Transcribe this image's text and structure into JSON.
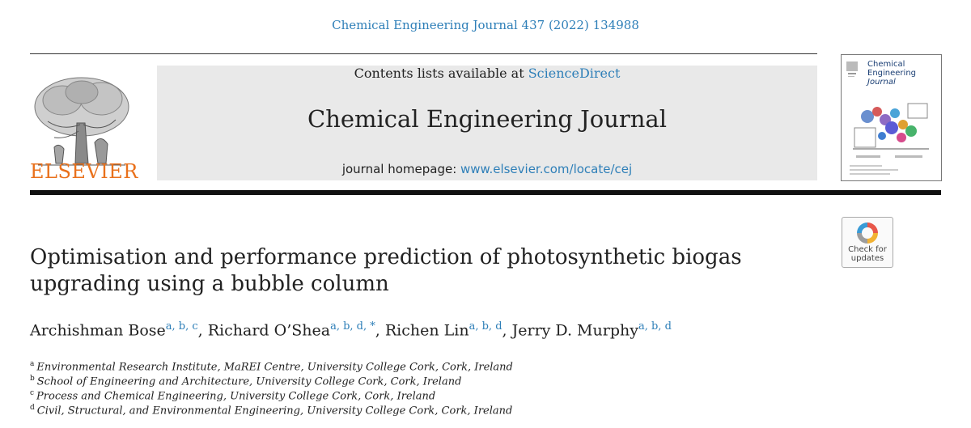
{
  "citation": "Chemical Engineering Journal 437 (2022) 134988",
  "publisher": {
    "name": "ELSEVIER"
  },
  "header": {
    "contents_prefix": "Contents lists available at ",
    "contents_link": "ScienceDirect",
    "journal_name": "Chemical Engineering Journal",
    "homepage_prefix": "journal homepage: ",
    "homepage_link": "www.elsevier.com/locate/cej"
  },
  "cover": {
    "title_line1": "Chemical",
    "title_line2": "Engineering",
    "title_line3": "Journal"
  },
  "check_updates": {
    "line1": "Check for",
    "line2": "updates"
  },
  "article": {
    "title_line1": "Optimisation and performance prediction of photosynthetic biogas",
    "title_line2": "upgrading using a bubble column",
    "authors": [
      {
        "name": "Archishman Bose",
        "sup": "a, b, c",
        "sep": ", "
      },
      {
        "name": "Richard O’Shea",
        "sup": "a, b, d, *",
        "sep": ", "
      },
      {
        "name": "Richen Lin",
        "sup": "a, b, d",
        "sep": ", "
      },
      {
        "name": "Jerry D. Murphy",
        "sup": "a, b, d",
        "sep": ""
      }
    ],
    "affiliations": [
      {
        "label": "a",
        "text": "Environmental Research Institute, MaREI Centre, University College Cork, Cork, Ireland"
      },
      {
        "label": "b",
        "text": "School of Engineering and Architecture, University College Cork, Cork, Ireland"
      },
      {
        "label": "c",
        "text": "Process and Chemical Engineering, University College Cork, Cork, Ireland"
      },
      {
        "label": "d",
        "text": "Civil, Structural, and Environmental Engineering, University College Cork, Cork, Ireland"
      }
    ]
  },
  "colors": {
    "link": "#2e7fb8",
    "elsevier_orange": "#e9711c",
    "header_bg": "#e9e9e9"
  }
}
